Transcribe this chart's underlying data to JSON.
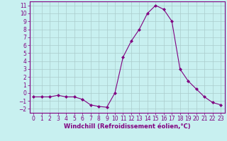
{
  "x": [
    0,
    1,
    2,
    3,
    4,
    5,
    6,
    7,
    8,
    9,
    10,
    11,
    12,
    13,
    14,
    15,
    16,
    17,
    18,
    19,
    20,
    21,
    22,
    23
  ],
  "y": [
    -0.5,
    -0.5,
    -0.5,
    -0.3,
    -0.5,
    -0.5,
    -0.8,
    -1.5,
    -1.7,
    -1.8,
    0.0,
    4.5,
    6.5,
    8.0,
    10.0,
    11.0,
    10.5,
    9.0,
    3.0,
    1.5,
    0.5,
    -0.5,
    -1.2,
    -1.5
  ],
  "line_color": "#800080",
  "marker_color": "#800080",
  "bg_color": "#c8f0f0",
  "grid_color": "#aacccc",
  "xlabel": "Windchill (Refroidissement éolien,°C)",
  "ylabel": "",
  "ylim": [
    -2.5,
    11.5
  ],
  "yticks": [
    -2,
    -1,
    0,
    1,
    2,
    3,
    4,
    5,
    6,
    7,
    8,
    9,
    10,
    11
  ],
  "xticks": [
    0,
    1,
    2,
    3,
    4,
    5,
    6,
    7,
    8,
    9,
    10,
    11,
    12,
    13,
    14,
    15,
    16,
    17,
    18,
    19,
    20,
    21,
    22,
    23
  ],
  "tick_color": "#800080",
  "label_color": "#800080",
  "font_size": 5.5,
  "xlabel_fontsize": 6.0
}
